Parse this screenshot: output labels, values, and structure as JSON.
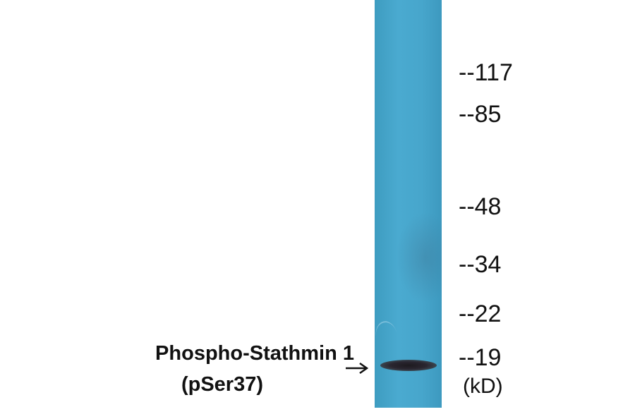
{
  "markers": [
    {
      "label": "--117",
      "kd": 117
    },
    {
      "label": "--85",
      "kd": 85
    },
    {
      "label": "--48",
      "kd": 48
    },
    {
      "label": "--34",
      "kd": 34
    },
    {
      "label": "--22",
      "kd": 22
    },
    {
      "label": "--19",
      "kd": 19
    }
  ],
  "unit": "(kD)",
  "band_label": {
    "line1": "Phospho-Stathmin 1",
    "line2": "(pSer37)"
  },
  "colors": {
    "lane": "#47a6cc",
    "band": "#1d1a1f",
    "text": "#111111"
  }
}
